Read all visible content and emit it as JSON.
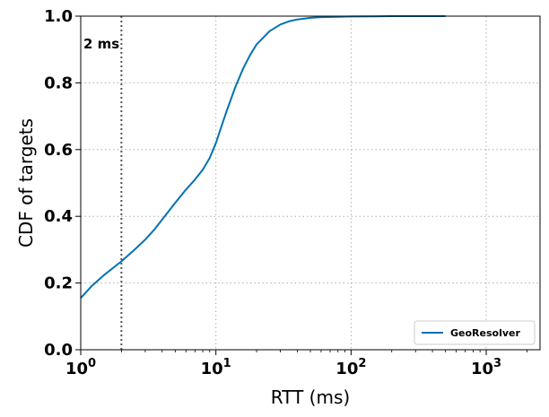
{
  "chart_data": {
    "type": "line",
    "xlabel": "RTT (ms)",
    "ylabel": "CDF of targets",
    "xscale": "log",
    "xlim": [
      1,
      2500
    ],
    "ylim": [
      0,
      1
    ],
    "x_ticks": [
      1,
      10,
      100,
      1000
    ],
    "x_tick_labels": [
      {
        "base": "10",
        "exp": "0"
      },
      {
        "base": "10",
        "exp": "1"
      },
      {
        "base": "10",
        "exp": "2"
      },
      {
        "base": "10",
        "exp": "3"
      }
    ],
    "y_ticks": [
      0.0,
      0.2,
      0.4,
      0.6,
      0.8,
      1.0
    ],
    "y_tick_labels": [
      "0.0",
      "0.2",
      "0.4",
      "0.6",
      "0.8",
      "1.0"
    ],
    "grid": true,
    "legend_position": "bottom-right",
    "series": [
      {
        "name": "GeoResolver",
        "color": "#0072B2",
        "x": [
          1.0,
          1.2,
          1.5,
          2.0,
          2.5,
          3.0,
          3.5,
          4.0,
          5.0,
          6.0,
          7.0,
          8.0,
          9.0,
          10.0,
          11.0,
          12.0,
          14.0,
          16.0,
          18.0,
          20.0,
          25.0,
          30.0,
          35.0,
          40.0,
          50.0,
          60.0,
          80.0,
          100.0,
          150.0,
          200.0,
          300.0,
          500.0
        ],
        "y": [
          0.155,
          0.19,
          0.225,
          0.265,
          0.3,
          0.33,
          0.36,
          0.39,
          0.44,
          0.48,
          0.51,
          0.54,
          0.575,
          0.62,
          0.67,
          0.715,
          0.79,
          0.845,
          0.885,
          0.915,
          0.955,
          0.975,
          0.985,
          0.99,
          0.995,
          0.997,
          0.998,
          0.999,
          0.9995,
          1.0,
          1.0,
          1.0
        ]
      }
    ],
    "annotations": [
      {
        "type": "vline",
        "x": 2,
        "color": "#555555",
        "style": "dotted",
        "label": "2 ms"
      }
    ]
  }
}
